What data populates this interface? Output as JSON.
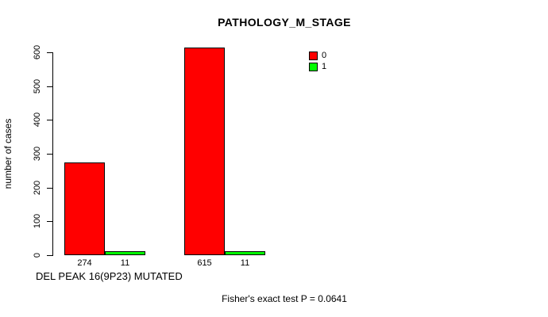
{
  "chart_data": {
    "type": "bar",
    "title": "PATHOLOGY_M_STAGE",
    "xlabel": "DEL PEAK 16(9P23) MUTATED",
    "ylabel": "number of cases",
    "categories": [
      "",
      ""
    ],
    "series": [
      {
        "name": "0",
        "color": "#FF0000",
        "values": [
          274,
          615
        ]
      },
      {
        "name": "1",
        "color": "#00FF00",
        "values": [
          11,
          11
        ]
      }
    ],
    "bar_value_labels": [
      "274",
      "11",
      "615",
      "11"
    ],
    "ylim": [
      0,
      600
    ],
    "yticks": [
      0,
      100,
      200,
      300,
      400,
      500,
      600
    ],
    "grid": false,
    "legend": {
      "position": "top-right",
      "entries": [
        {
          "label": "0",
          "color": "#FF0000"
        },
        {
          "label": "1",
          "color": "#00FF00"
        }
      ]
    },
    "annotation": "Fisher's exact test P = 0.0641"
  },
  "colors": {
    "background": "#ffffff",
    "axis": "#000000",
    "bar_series_0": "#FF0000",
    "bar_series_1": "#00FF00"
  }
}
